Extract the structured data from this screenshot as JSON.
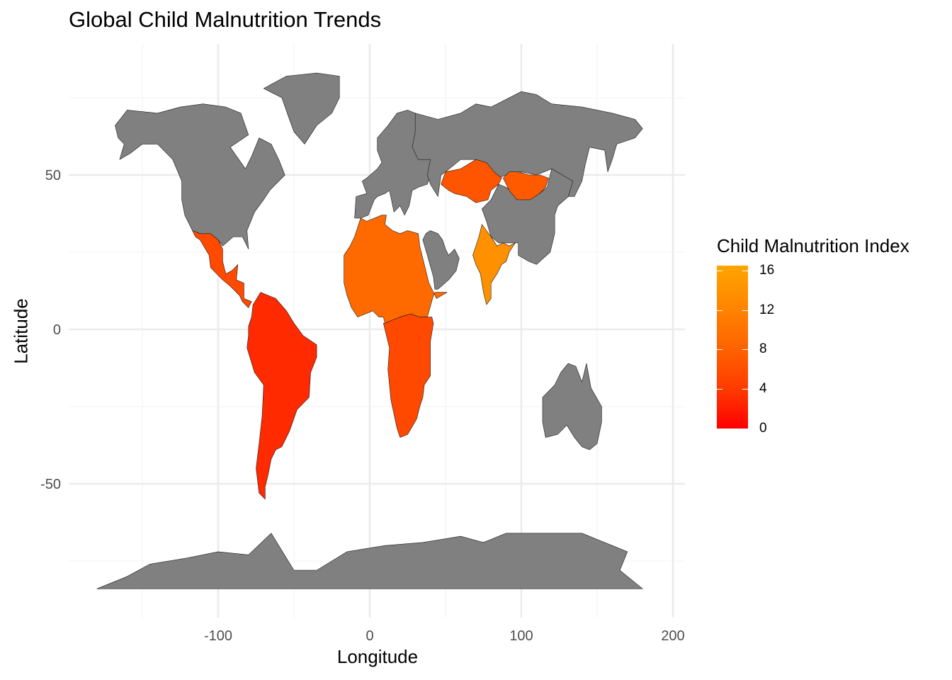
{
  "title": "Global Child Malnutrition Trends",
  "x_axis": {
    "label": "Longitude",
    "ticks": [
      {
        "value": -100,
        "label": "-100"
      },
      {
        "value": 0,
        "label": "0"
      },
      {
        "value": 100,
        "label": "100"
      },
      {
        "value": 200,
        "label": "200"
      }
    ],
    "minor_ticks": [
      -150,
      -50,
      50,
      150
    ]
  },
  "y_axis": {
    "label": "Latitude",
    "ticks": [
      {
        "value": 50,
        "label": "50"
      },
      {
        "value": 0,
        "label": "0"
      },
      {
        "value": -50,
        "label": "-50"
      }
    ],
    "minor_ticks": [
      75,
      25,
      -25,
      -75
    ]
  },
  "legend": {
    "title": "Child Malnutrition Index",
    "ticks": [
      {
        "value": 16,
        "label": "16"
      },
      {
        "value": 12,
        "label": "12"
      },
      {
        "value": 8,
        "label": "8"
      },
      {
        "value": 4,
        "label": "4"
      },
      {
        "value": 0,
        "label": "0"
      }
    ],
    "range": [
      0,
      16.5
    ],
    "low_color": "#ff0000",
    "high_color": "#ffa500",
    "na_color": "#808080"
  },
  "map": {
    "projection": "equirectangular",
    "xlim": [
      -180,
      200
    ],
    "ylim": [
      -85,
      85
    ],
    "regions": [
      {
        "name": "North America",
        "fill": "#808080"
      },
      {
        "name": "Greenland",
        "fill": "#808080"
      },
      {
        "name": "Mexico and Central America",
        "fill": "#ff4a00"
      },
      {
        "name": "South America",
        "fill": "#ff2a00"
      },
      {
        "name": "Northern Africa",
        "fill": "#ff6a00"
      },
      {
        "name": "Southern Africa",
        "fill": "#ff4800"
      },
      {
        "name": "Europe",
        "fill": "#808080"
      },
      {
        "name": "Russia",
        "fill": "#808080"
      },
      {
        "name": "China",
        "fill": "#808080"
      },
      {
        "name": "Kazakhstan",
        "fill": "#ff5500"
      },
      {
        "name": "Mongolia",
        "fill": "#ff5a00"
      },
      {
        "name": "India",
        "fill": "#ff9000"
      },
      {
        "name": "Arabian Peninsula",
        "fill": "#808080"
      },
      {
        "name": "Australia",
        "fill": "#808080"
      },
      {
        "name": "Antarctica",
        "fill": "#808080"
      }
    ]
  },
  "colors": {
    "panel_background": "#ffffff",
    "grid_major": "#ebebeb",
    "grid_minor": "#f5f5f5",
    "tick_label": "#4d4d4d",
    "border": "#1a1a1a"
  }
}
